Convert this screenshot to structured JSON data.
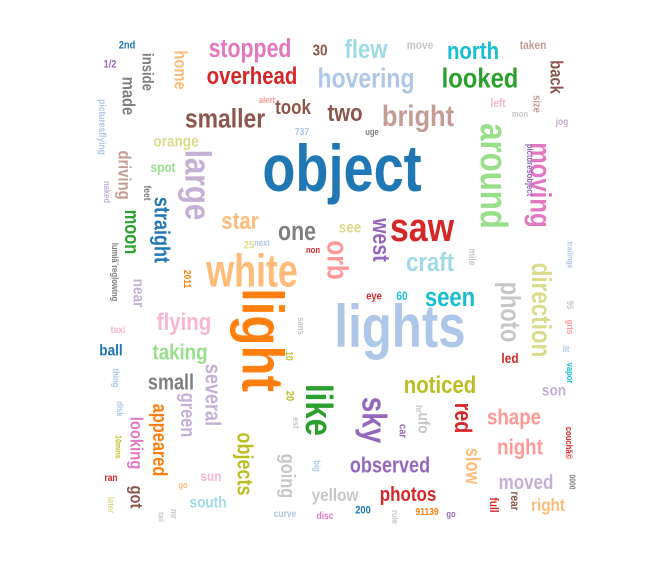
{
  "words": [
    {
      "text": "object",
      "color": "#1f77b4"
    },
    {
      "text": "lights",
      "color": "#aec7e8"
    },
    {
      "text": "light",
      "color": "#ff7f0e"
    },
    {
      "text": "white",
      "color": "#ffbb78"
    },
    {
      "text": "saw",
      "color": "#d62728"
    },
    {
      "text": "around",
      "color": "#98df8a"
    },
    {
      "text": "like",
      "color": "#2ca02c"
    },
    {
      "text": "sky",
      "color": "#9467bd"
    },
    {
      "text": "large",
      "color": "#c5b0d5"
    },
    {
      "text": "moving",
      "color": "#e377c2"
    },
    {
      "text": "orb",
      "color": "#ff9896"
    },
    {
      "text": "direction",
      "color": "#dbdb8d"
    },
    {
      "text": "photo",
      "color": "#c7c7c7"
    },
    {
      "text": "bright",
      "color": "#c49c94"
    },
    {
      "text": "hovering",
      "color": "#aec7e8"
    },
    {
      "text": "looked",
      "color": "#2ca02c"
    },
    {
      "text": "north",
      "color": "#17becf"
    },
    {
      "text": "smaller",
      "color": "#8c564b"
    },
    {
      "text": "overhead",
      "color": "#d62728"
    },
    {
      "text": "stopped",
      "color": "#e377c2"
    },
    {
      "text": "flew",
      "color": "#9edae5"
    },
    {
      "text": "seen",
      "color": "#17becf"
    },
    {
      "text": "craft",
      "color": "#9edae5"
    },
    {
      "text": "west",
      "color": "#9467bd"
    },
    {
      "text": "one",
      "color": "#7f7f7f"
    },
    {
      "text": "two",
      "color": "#8c564b"
    },
    {
      "text": "took",
      "color": "#8c564b"
    },
    {
      "text": "star",
      "color": "#ffbb78"
    },
    {
      "text": "straight",
      "color": "#1f77b4"
    },
    {
      "text": "moon",
      "color": "#2ca02c"
    },
    {
      "text": "flying",
      "color": "#f7b6d2"
    },
    {
      "text": "taking",
      "color": "#98df8a"
    },
    {
      "text": "small",
      "color": "#7f7f7f"
    },
    {
      "text": "several",
      "color": "#c5b0d5"
    },
    {
      "text": "green",
      "color": "#c5b0d5"
    },
    {
      "text": "objects",
      "color": "#bcbd22"
    },
    {
      "text": "going",
      "color": "#c7c7c7"
    },
    {
      "text": "noticed",
      "color": "#bcbd22"
    },
    {
      "text": "red",
      "color": "#d62728"
    },
    {
      "text": "shape",
      "color": "#ff9896"
    },
    {
      "text": "night",
      "color": "#ff9896"
    },
    {
      "text": "observed",
      "color": "#9467bd"
    },
    {
      "text": "photos",
      "color": "#d62728"
    },
    {
      "text": "moved",
      "color": "#c5b0d5"
    },
    {
      "text": "right",
      "color": "#ffbb78"
    },
    {
      "text": "slow",
      "color": "#ffbb78"
    },
    {
      "text": "appeared",
      "color": "#ff7f0e"
    },
    {
      "text": "looking",
      "color": "#e377c2"
    },
    {
      "text": "got",
      "color": "#8c564b"
    },
    {
      "text": "driving",
      "color": "#c49c94"
    },
    {
      "text": "made",
      "color": "#7f7f7f"
    },
    {
      "text": "home",
      "color": "#ffbb78"
    },
    {
      "text": "inside",
      "color": "#7f7f7f"
    },
    {
      "text": "back",
      "color": "#8c564b"
    },
    {
      "text": "orange",
      "color": "#dbdb8d"
    },
    {
      "text": "spot",
      "color": "#98df8a"
    },
    {
      "text": "ufo",
      "color": "#c7c7c7"
    },
    {
      "text": "south",
      "color": "#9edae5"
    },
    {
      "text": "yellow",
      "color": "#c7c7c7"
    },
    {
      "text": "sun",
      "color": "#f7b6d2"
    },
    {
      "text": "son",
      "color": "#c5b0d5"
    },
    {
      "text": "ball",
      "color": "#1f77b4"
    },
    {
      "text": "near",
      "color": "#c5b0d5"
    },
    {
      "text": "see",
      "color": "#dbdb8d"
    },
    {
      "text": "30",
      "color": "#8c564b"
    },
    {
      "text": "move",
      "color": "#c7c7c7"
    },
    {
      "text": "taken",
      "color": "#c49c94"
    },
    {
      "text": "2nd",
      "color": "#1f77b4"
    },
    {
      "text": "1/2",
      "color": "#9467bd"
    },
    {
      "text": "picturesflying",
      "color": "#aec7e8"
    },
    {
      "text": "alert",
      "color": "#ff9896"
    },
    {
      "text": "737",
      "color": "#aec7e8"
    },
    {
      "text": "uge",
      "color": "#7f7f7f"
    },
    {
      "text": "left",
      "color": "#f7b6d2"
    },
    {
      "text": "mon",
      "color": "#c7c7c7"
    },
    {
      "text": "size",
      "color": "#c49c94"
    },
    {
      "text": "jog",
      "color": "#c5b0d5"
    },
    {
      "text": "picturesobject",
      "color": "#9467bd"
    },
    {
      "text": "trailinge",
      "color": "#aec7e8"
    },
    {
      "text": "feet",
      "color": "#7f7f7f"
    },
    {
      "text": "naked",
      "color": "#c5b0d5"
    },
    {
      "text": "lumiã¨reglowing",
      "color": "#7f7f7f"
    },
    {
      "text": "25",
      "color": "#dbdb8d"
    },
    {
      "text": "next",
      "color": "#aec7e8"
    },
    {
      "text": "non",
      "color": "#d62728"
    },
    {
      "text": "mile",
      "color": "#c7c7c7"
    },
    {
      "text": "2011",
      "color": "#ff7f0e"
    },
    {
      "text": "eye",
      "color": "#d62728"
    },
    {
      "text": "60",
      "color": "#17becf"
    },
    {
      "text": "95",
      "color": "#c7c7c7"
    },
    {
      "text": "grts",
      "color": "#ff9896"
    },
    {
      "text": "lit",
      "color": "#aec7e8"
    },
    {
      "text": "vapor",
      "color": "#17becf"
    },
    {
      "text": "taxi",
      "color": "#f7b6d2"
    },
    {
      "text": "sans",
      "color": "#c7c7c7"
    },
    {
      "text": "10",
      "color": "#bcbd22"
    },
    {
      "text": "led",
      "color": "#d62728"
    },
    {
      "text": "thing",
      "color": "#aec7e8"
    },
    {
      "text": "20",
      "color": "#bcbd22"
    },
    {
      "text": "est",
      "color": "#c7c7c7"
    },
    {
      "text": "car",
      "color": "#9467bd"
    },
    {
      "text": "hr",
      "color": "#c7c7c7"
    },
    {
      "text": "couchã©",
      "color": "#d62728"
    },
    {
      "text": "disk",
      "color": "#aec7e8"
    },
    {
      "text": "10mins",
      "color": "#bcbd22"
    },
    {
      "text": "big",
      "color": "#aec7e8"
    },
    {
      "text": "ran",
      "color": "#d62728"
    },
    {
      "text": "later",
      "color": "#dbdb8d"
    },
    {
      "text": "go",
      "color": "#ffbb78"
    },
    {
      "text": "mr",
      "color": "#c7c7c7"
    },
    {
      "text": "tail",
      "color": "#c7c7c7"
    },
    {
      "text": "curve",
      "color": "#aec7e8"
    },
    {
      "text": "disc",
      "color": "#e377c2"
    },
    {
      "text": "200",
      "color": "#1f77b4"
    },
    {
      "text": "rule",
      "color": "#c7c7c7"
    },
    {
      "text": "91139",
      "color": "#ff7f0e"
    },
    {
      "text": "go",
      "color": "#9467bd"
    },
    {
      "text": "full",
      "color": "#d62728"
    },
    {
      "text": "rear",
      "color": "#8c564b"
    },
    {
      "text": "0000",
      "color": "#7f7f7f"
    }
  ]
}
